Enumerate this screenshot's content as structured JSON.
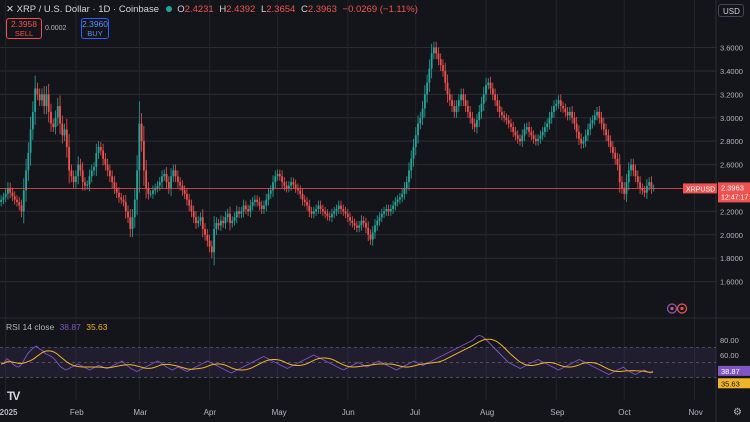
{
  "header": {
    "symbol": "XRP / U.S. Dollar · 1D · Coinbase",
    "open_label": "O",
    "open": "2.4231",
    "high_label": "H",
    "high": "2.4392",
    "low_label": "L",
    "low": "2.3654",
    "close_label": "C",
    "close": "2.3963",
    "change": "−0.0269 (−1.11%)"
  },
  "trade": {
    "sell_price": "2.3958",
    "sell_label": "SELL",
    "spread": "0.0002",
    "buy_price": "2.3960",
    "buy_label": "BUY"
  },
  "currency": "USD",
  "price_tag": {
    "symbol": "XRPUSD",
    "price": "2.3963",
    "countdown": "12:47:17"
  },
  "rsi": {
    "label": "RSI 14 close",
    "value": "38.87",
    "ma_value": "35.63"
  },
  "colors": {
    "up": "#26a69a",
    "down": "#ef5350",
    "rsi": "#7e57c2",
    "rsi_ma": "#f0b429",
    "background": "#14151a"
  },
  "icons": {
    "logo": "tradingview-logo-icon",
    "settings": "gear-icon",
    "close": "close-icon"
  },
  "chart_data": {
    "type": "candlestick",
    "y_ticks": [
      "3.6000",
      "3.4000",
      "3.2000",
      "3.0000",
      "2.8000",
      "2.6000",
      "2.2000",
      "2.0000",
      "1.8000",
      "1.6000"
    ],
    "ylim": [
      1.4,
      3.75
    ],
    "x_ticks": [
      {
        "label": "2025",
        "index": 2,
        "bold": true
      },
      {
        "label": "Feb",
        "index": 33
      },
      {
        "label": "Mar",
        "index": 61
      },
      {
        "label": "Apr",
        "index": 92
      },
      {
        "label": "May",
        "index": 122
      },
      {
        "label": "Jun",
        "index": 153
      },
      {
        "label": "Jul",
        "index": 183
      },
      {
        "label": "Aug",
        "index": 214
      },
      {
        "label": "Sep",
        "index": 245
      },
      {
        "label": "Oct",
        "index": 275
      },
      {
        "label": "Nov",
        "index": 306
      }
    ],
    "n_slots": 316,
    "close_series": [
      2.3,
      2.32,
      2.35,
      2.4,
      2.36,
      2.33,
      2.3,
      2.28,
      2.25,
      2.2,
      2.38,
      2.55,
      2.7,
      2.9,
      3.05,
      3.25,
      3.2,
      3.15,
      3.2,
      3.1,
      3.2,
      3.05,
      2.95,
      2.92,
      3.0,
      3.1,
      2.95,
      2.85,
      2.9,
      2.75,
      2.55,
      2.5,
      2.45,
      2.5,
      2.6,
      2.55,
      2.45,
      2.42,
      2.43,
      2.5,
      2.55,
      2.58,
      2.7,
      2.75,
      2.72,
      2.65,
      2.6,
      2.55,
      2.5,
      2.45,
      2.4,
      2.36,
      2.32,
      2.3,
      2.28,
      2.2,
      2.15,
      2.05,
      2.15,
      2.3,
      2.55,
      2.95,
      2.8,
      2.55,
      2.4,
      2.35,
      2.35,
      2.38,
      2.4,
      2.42,
      2.45,
      2.5,
      2.52,
      2.45,
      2.4,
      2.5,
      2.55,
      2.5,
      2.45,
      2.42,
      2.38,
      2.35,
      2.3,
      2.25,
      2.2,
      2.15,
      2.1,
      2.12,
      2.15,
      2.05,
      2.0,
      1.95,
      1.9,
      1.85,
      2.05,
      2.1,
      2.08,
      2.12,
      2.1,
      2.15,
      2.18,
      2.1,
      2.12,
      2.15,
      2.2,
      2.18,
      2.2,
      2.25,
      2.22,
      2.2,
      2.25,
      2.28,
      2.3,
      2.28,
      2.25,
      2.22,
      2.25,
      2.3,
      2.35,
      2.38,
      2.45,
      2.5,
      2.52,
      2.5,
      2.45,
      2.42,
      2.4,
      2.42,
      2.45,
      2.43,
      2.4,
      2.38,
      2.35,
      2.3,
      2.28,
      2.25,
      2.2,
      2.18,
      2.2,
      2.22,
      2.25,
      2.22,
      2.2,
      2.18,
      2.16,
      2.15,
      2.18,
      2.2,
      2.22,
      2.25,
      2.22,
      2.2,
      2.18,
      2.15,
      2.12,
      2.1,
      2.08,
      2.06,
      2.08,
      2.12,
      2.1,
      2.06,
      2.0,
      1.96,
      2.02,
      2.08,
      2.12,
      2.15,
      2.18,
      2.2,
      2.22,
      2.2,
      2.22,
      2.25,
      2.28,
      2.3,
      2.32,
      2.35,
      2.4,
      2.45,
      2.55,
      2.65,
      2.75,
      2.85,
      2.95,
      3.0,
      3.08,
      3.2,
      3.3,
      3.42,
      3.55,
      3.6,
      3.55,
      3.5,
      3.45,
      3.4,
      3.3,
      3.2,
      3.15,
      3.1,
      3.05,
      3.1,
      3.15,
      3.2,
      3.15,
      3.1,
      3.05,
      3.0,
      2.95,
      2.92,
      2.98,
      3.05,
      3.12,
      3.2,
      3.28,
      3.3,
      3.25,
      3.2,
      3.15,
      3.1,
      3.05,
      3.02,
      3.0,
      2.98,
      2.95,
      2.92,
      2.88,
      2.85,
      2.82,
      2.8,
      2.85,
      2.9,
      2.92,
      2.88,
      2.85,
      2.82,
      2.8,
      2.82,
      2.85,
      2.88,
      2.92,
      2.95,
      3.0,
      3.05,
      3.1,
      3.12,
      3.15,
      3.1,
      3.08,
      3.05,
      3.02,
      3.05,
      3.0,
      2.95,
      2.88,
      2.82,
      2.78,
      2.8,
      2.85,
      2.9,
      2.95,
      2.98,
      3.02,
      3.05,
      3.0,
      2.95,
      2.9,
      2.85,
      2.8,
      2.75,
      2.7,
      2.65,
      2.6,
      2.45,
      2.4,
      2.35,
      2.45,
      2.55,
      2.6,
      2.55,
      2.5,
      2.45,
      2.4,
      2.38,
      2.36,
      2.42,
      2.45,
      2.4,
      2.4
    ],
    "rsi_series": [
      48,
      50,
      55,
      52,
      48,
      45,
      44,
      48,
      55,
      62,
      66,
      70,
      72,
      68,
      66,
      62,
      60,
      58,
      55,
      50,
      45,
      42,
      40,
      42,
      44,
      46,
      48,
      46,
      44,
      42,
      40,
      42,
      44,
      46,
      45,
      43,
      42,
      44,
      46,
      48,
      50,
      52,
      48,
      45,
      42,
      40,
      38,
      40,
      42,
      44,
      46,
      48,
      50,
      52,
      50,
      47,
      44,
      42,
      40,
      42,
      44,
      42,
      40,
      38,
      40,
      42,
      44,
      46,
      48,
      50,
      52,
      50,
      48,
      46,
      44,
      42,
      40,
      38,
      36,
      38,
      40,
      42,
      44,
      46,
      48,
      50,
      52,
      54,
      56,
      58,
      56,
      54,
      52,
      50,
      48,
      46,
      44,
      42,
      44,
      46,
      48,
      50,
      52,
      54,
      56,
      58,
      60,
      58,
      56,
      54,
      52,
      50,
      48,
      46,
      44,
      42,
      40,
      42,
      44,
      46,
      48,
      50,
      48,
      46,
      44,
      46,
      48,
      50,
      52,
      50,
      48,
      46,
      44,
      42,
      40,
      42,
      44,
      46,
      48,
      50,
      52,
      50,
      48,
      46,
      48,
      50,
      52,
      54,
      56,
      58,
      60,
      62,
      64,
      66,
      68,
      70,
      72,
      74,
      76,
      78,
      80,
      84,
      86,
      85,
      82,
      78,
      74,
      70,
      66,
      62,
      58,
      54,
      50,
      48,
      46,
      44,
      42,
      44,
      46,
      48,
      50,
      52,
      54,
      52,
      50,
      48,
      46,
      44,
      42,
      40,
      42,
      44,
      46,
      48,
      50,
      52,
      54,
      52,
      50,
      48,
      46,
      44,
      42,
      40,
      38,
      36,
      34,
      36,
      38,
      40,
      42,
      44,
      40,
      38,
      36,
      34,
      36,
      38,
      40,
      38,
      36,
      38.87
    ]
  }
}
